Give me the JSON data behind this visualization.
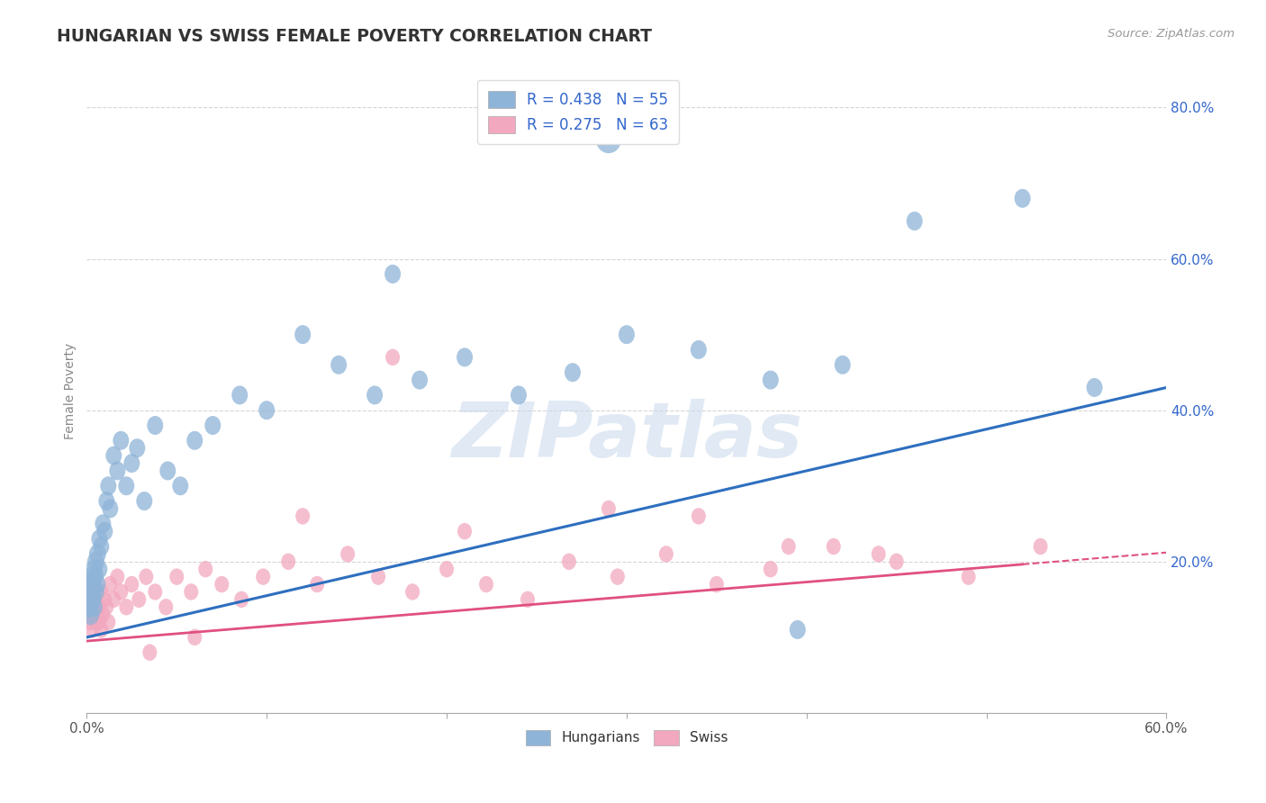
{
  "title": "HUNGARIAN VS SWISS FEMALE POVERTY CORRELATION CHART",
  "source": "Source: ZipAtlas.com",
  "ylabel": "Female Poverty",
  "xlim": [
    0.0,
    0.6
  ],
  "ylim": [
    0.0,
    0.85
  ],
  "xticks": [
    0.0,
    0.1,
    0.2,
    0.3,
    0.4,
    0.5,
    0.6
  ],
  "xtick_labels": [
    "0.0%",
    "",
    "",
    "",
    "",
    "",
    "60.0%"
  ],
  "ytick_labels": [
    "",
    "20.0%",
    "40.0%",
    "60.0%",
    "80.0%"
  ],
  "yticks": [
    0.0,
    0.2,
    0.4,
    0.6,
    0.8
  ],
  "hungarian_color": "#8EB4D8",
  "swiss_color": "#F2A8BE",
  "hungarian_line_color": "#2E6FBF",
  "swiss_line_color": "#E05080",
  "background_color": "#FFFFFF",
  "grid_color": "#CCCCCC",
  "R_hungarian": 0.438,
  "N_hungarian": 55,
  "R_swiss": 0.275,
  "N_swiss": 63,
  "watermark": "ZIPatlas",
  "hun_intercept": 0.1,
  "hun_slope": 0.55,
  "swiss_intercept": 0.095,
  "swiss_slope": 0.195,
  "hun_x": [
    0.001,
    0.001,
    0.002,
    0.002,
    0.002,
    0.003,
    0.003,
    0.003,
    0.003,
    0.004,
    0.004,
    0.005,
    0.005,
    0.005,
    0.006,
    0.006,
    0.007,
    0.007,
    0.008,
    0.009,
    0.01,
    0.011,
    0.012,
    0.013,
    0.015,
    0.017,
    0.019,
    0.022,
    0.025,
    0.028,
    0.032,
    0.038,
    0.045,
    0.052,
    0.06,
    0.07,
    0.085,
    0.1,
    0.12,
    0.14,
    0.16,
    0.185,
    0.21,
    0.24,
    0.27,
    0.3,
    0.34,
    0.38,
    0.42,
    0.46,
    0.52,
    0.56,
    0.29,
    0.17,
    0.395
  ],
  "hun_y": [
    0.14,
    0.16,
    0.13,
    0.17,
    0.15,
    0.15,
    0.17,
    0.16,
    0.18,
    0.14,
    0.19,
    0.16,
    0.2,
    0.18,
    0.21,
    0.17,
    0.23,
    0.19,
    0.22,
    0.25,
    0.24,
    0.28,
    0.3,
    0.27,
    0.34,
    0.32,
    0.36,
    0.3,
    0.33,
    0.35,
    0.28,
    0.38,
    0.32,
    0.3,
    0.36,
    0.38,
    0.42,
    0.4,
    0.5,
    0.46,
    0.42,
    0.44,
    0.47,
    0.42,
    0.45,
    0.5,
    0.48,
    0.44,
    0.46,
    0.65,
    0.68,
    0.43,
    0.76,
    0.58,
    0.11
  ],
  "hun_sizes": [
    60,
    60,
    55,
    55,
    50,
    55,
    55,
    50,
    50,
    50,
    50,
    50,
    50,
    45,
    50,
    45,
    45,
    45,
    45,
    45,
    45,
    45,
    45,
    45,
    45,
    45,
    45,
    45,
    45,
    45,
    45,
    45,
    45,
    45,
    45,
    45,
    45,
    45,
    45,
    45,
    45,
    45,
    45,
    45,
    45,
    45,
    45,
    45,
    45,
    45,
    45,
    45,
    120,
    45,
    45
  ],
  "swiss_x": [
    0.001,
    0.001,
    0.002,
    0.002,
    0.003,
    0.003,
    0.003,
    0.004,
    0.004,
    0.005,
    0.005,
    0.006,
    0.006,
    0.007,
    0.007,
    0.008,
    0.008,
    0.009,
    0.01,
    0.011,
    0.012,
    0.013,
    0.015,
    0.017,
    0.019,
    0.022,
    0.025,
    0.029,
    0.033,
    0.038,
    0.044,
    0.05,
    0.058,
    0.066,
    0.075,
    0.086,
    0.098,
    0.112,
    0.128,
    0.145,
    0.162,
    0.181,
    0.2,
    0.222,
    0.245,
    0.268,
    0.295,
    0.322,
    0.35,
    0.38,
    0.415,
    0.45,
    0.49,
    0.53,
    0.17,
    0.34,
    0.21,
    0.29,
    0.39,
    0.44,
    0.12,
    0.06,
    0.035
  ],
  "swiss_y": [
    0.13,
    0.15,
    0.12,
    0.16,
    0.11,
    0.14,
    0.16,
    0.13,
    0.17,
    0.12,
    0.15,
    0.13,
    0.16,
    0.12,
    0.14,
    0.16,
    0.11,
    0.13,
    0.15,
    0.14,
    0.12,
    0.17,
    0.15,
    0.18,
    0.16,
    0.14,
    0.17,
    0.15,
    0.18,
    0.16,
    0.14,
    0.18,
    0.16,
    0.19,
    0.17,
    0.15,
    0.18,
    0.2,
    0.17,
    0.21,
    0.18,
    0.16,
    0.19,
    0.17,
    0.15,
    0.2,
    0.18,
    0.21,
    0.17,
    0.19,
    0.22,
    0.2,
    0.18,
    0.22,
    0.47,
    0.26,
    0.24,
    0.27,
    0.22,
    0.21,
    0.26,
    0.1,
    0.08
  ],
  "swiss_sizes": [
    50,
    50,
    50,
    50,
    50,
    50,
    50,
    50,
    50,
    50,
    50,
    50,
    50,
    50,
    50,
    50,
    50,
    50,
    50,
    50,
    50,
    50,
    50,
    50,
    50,
    50,
    50,
    50,
    50,
    50,
    50,
    50,
    50,
    50,
    50,
    50,
    50,
    50,
    50,
    50,
    50,
    50,
    50,
    50,
    50,
    50,
    50,
    50,
    50,
    50,
    50,
    50,
    50,
    50,
    50,
    50,
    50,
    50,
    50,
    50,
    50,
    50,
    50
  ]
}
